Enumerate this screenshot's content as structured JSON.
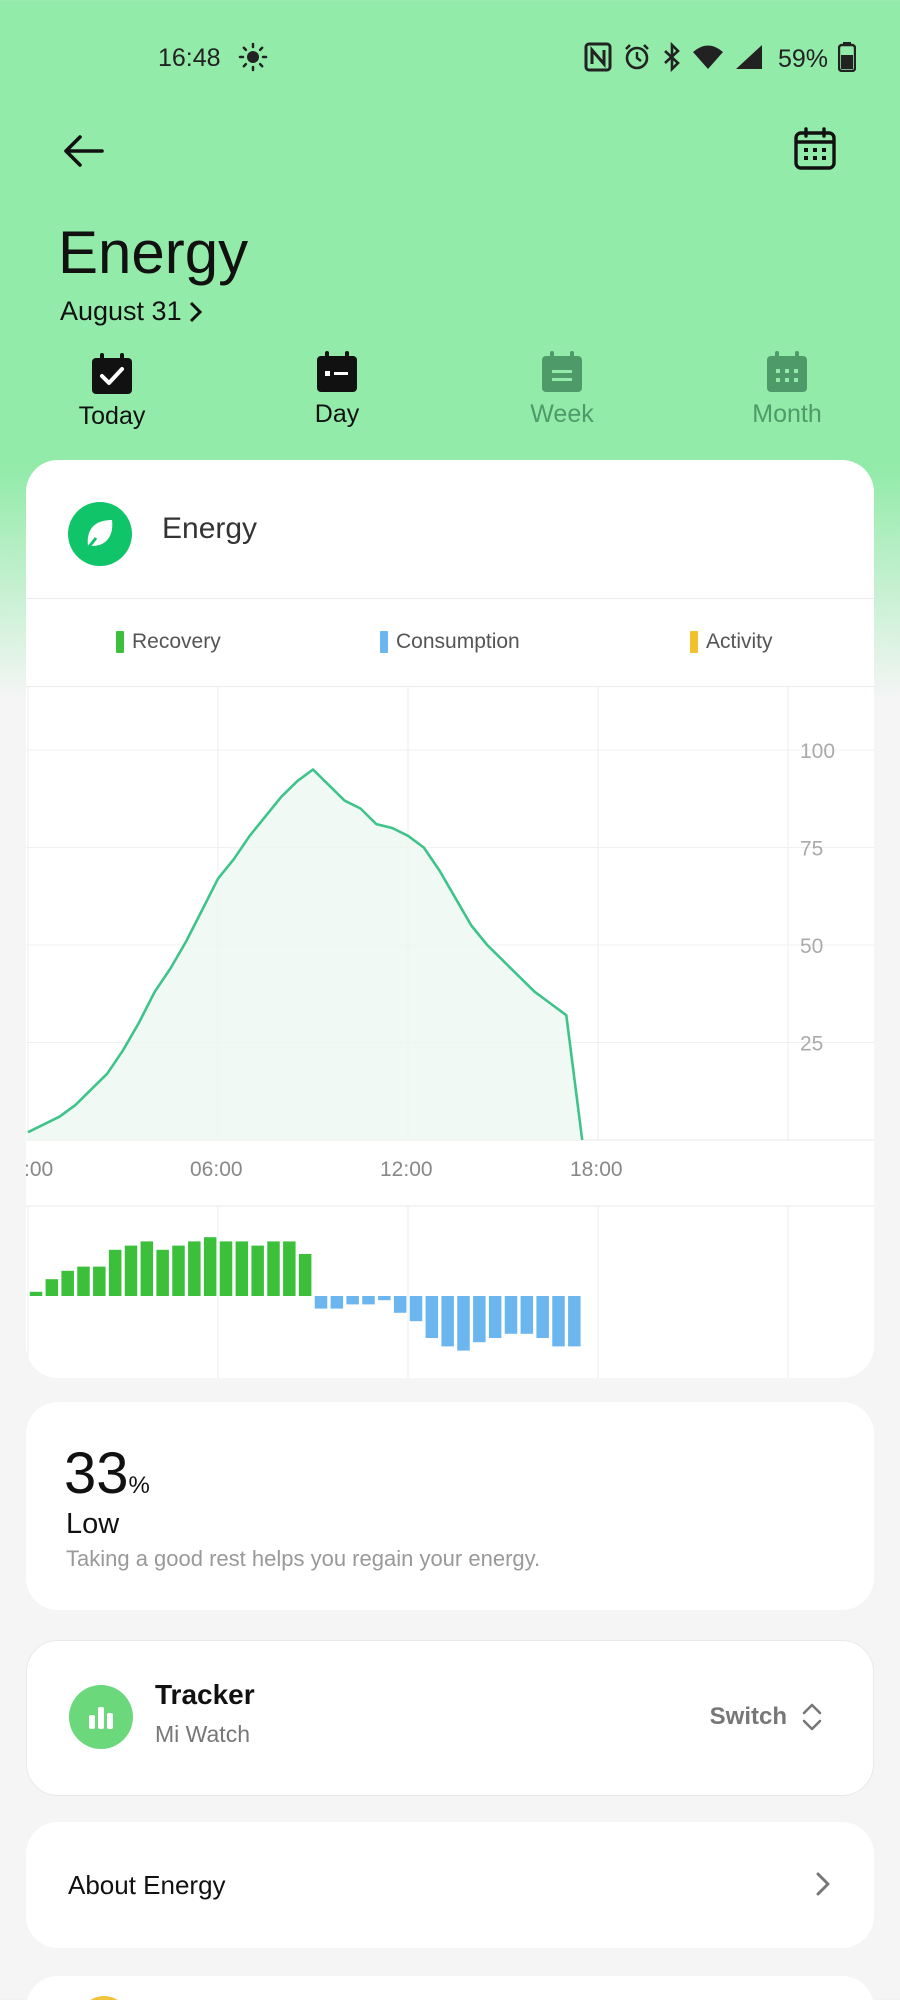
{
  "status_bar": {
    "time": "16:48",
    "battery": "59%",
    "icons": [
      "sun-icon",
      "nfc-icon",
      "alarm-icon",
      "bluetooth-icon",
      "wifi-icon",
      "signal-icon",
      "battery-icon"
    ]
  },
  "header": {
    "title": "Energy",
    "date": "August 31",
    "back_icon": "back-arrow-icon",
    "calendar_icon": "calendar-icon"
  },
  "tabs": [
    {
      "label": "Today",
      "icon": "calendar-check-icon",
      "active": true
    },
    {
      "label": "Day",
      "icon": "calendar-day-icon",
      "active": true
    },
    {
      "label": "Week",
      "icon": "calendar-week-icon",
      "active": false
    },
    {
      "label": "Month",
      "icon": "calendar-month-icon",
      "active": false
    }
  ],
  "energy_card": {
    "title": "Energy",
    "legend": [
      {
        "label": "Recovery",
        "color": "#3cc03c"
      },
      {
        "label": "Consumption",
        "color": "#6cb6f0"
      },
      {
        "label": "Activity",
        "color": "#f2c12e"
      }
    ]
  },
  "chart_data": [
    {
      "type": "area",
      "y_ticks": [
        "100",
        "75",
        "50",
        "25"
      ],
      "x_ticks": [
        ":00",
        "06:00",
        "12:00",
        "18:00"
      ],
      "ylim": [
        0,
        100
      ],
      "xlim": [
        0,
        24
      ],
      "series": [
        {
          "x": [
            0,
            0.5,
            1,
            1.5,
            2,
            2.5,
            3,
            3.5,
            4,
            4.5,
            5,
            5.5,
            6,
            6.5,
            7,
            7.5,
            8,
            8.5,
            9,
            9.5,
            10,
            10.5,
            11,
            11.5,
            12,
            12.5,
            13,
            13.5,
            14,
            14.5,
            15,
            15.5,
            16,
            16.5,
            17,
            17.5
          ],
          "y": [
            2,
            4,
            6,
            9,
            13,
            17,
            23,
            30,
            38,
            44,
            51,
            59,
            67,
            72,
            78,
            83,
            88,
            92,
            95,
            91,
            87,
            85,
            81,
            80,
            78,
            75,
            69,
            62,
            55,
            50,
            46,
            42,
            38,
            35,
            32,
            0
          ]
        }
      ],
      "grid": true,
      "color": "#3ec48a"
    },
    {
      "type": "bar",
      "x": [
        0,
        0.5,
        1,
        1.5,
        2,
        2.5,
        3,
        3.5,
        4,
        4.5,
        5,
        5.5,
        6,
        6.5,
        7,
        7.5,
        8,
        8.5,
        9,
        9.5,
        10,
        10.5,
        11,
        11.5,
        12,
        12.5,
        13,
        13.5,
        14,
        14.5,
        15,
        15.5,
        16,
        16.5,
        17
      ],
      "values": [
        1,
        4,
        6,
        7,
        7,
        11,
        12,
        13,
        11,
        12,
        13,
        14,
        13,
        13,
        12,
        13,
        13,
        10,
        -3,
        -3,
        -2,
        -2,
        -1,
        -4,
        -6,
        -10,
        -12,
        -13,
        -11,
        -10,
        -9,
        -9,
        -10,
        -12,
        -12
      ],
      "positive_color": "#3cc03c",
      "negative_color": "#6cb6f0"
    }
  ],
  "summary": {
    "value": "33",
    "unit": "%",
    "level": "Low",
    "description": "Taking a good rest helps you regain your energy."
  },
  "tracker": {
    "title": "Tracker",
    "device": "Mi Watch",
    "switch_label": "Switch",
    "icon": "bar-chart-icon"
  },
  "about": {
    "label": "About Energy"
  }
}
